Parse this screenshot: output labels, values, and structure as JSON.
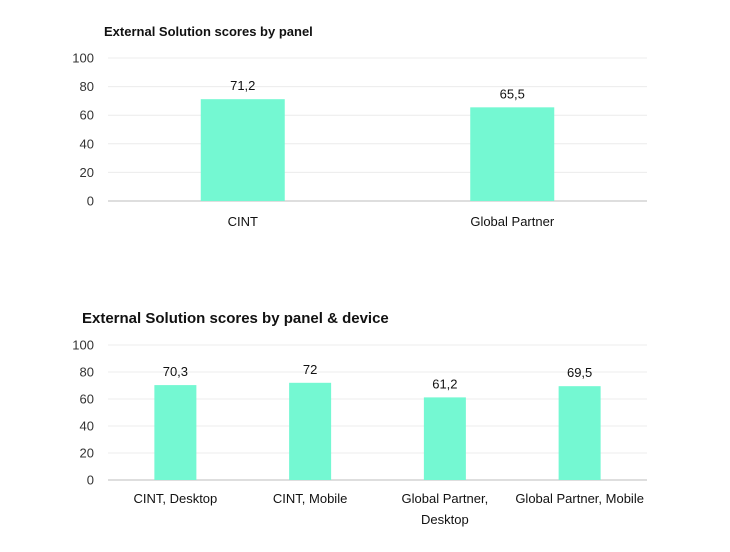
{
  "chart_data": [
    {
      "type": "bar",
      "title": "External Solution scores by panel",
      "categories": [
        "CINT",
        "Global Partner"
      ],
      "values": [
        71.2,
        65.5
      ],
      "value_labels": [
        "71,2",
        "65,5"
      ],
      "xlabel": "",
      "ylabel": "",
      "ylim": [
        0,
        100
      ],
      "yticks": [
        0,
        20,
        40,
        60,
        80,
        100
      ],
      "grid": true,
      "bar_color": "#74f8d2"
    },
    {
      "type": "bar",
      "title": "External Solution scores by panel & device",
      "categories": [
        "CINT, Desktop",
        "CINT, Mobile",
        "Global Partner, Desktop",
        "Global Partner, Mobile"
      ],
      "category_lines": [
        [
          "CINT, Desktop"
        ],
        [
          "CINT, Mobile"
        ],
        [
          "Global Partner,",
          "Desktop"
        ],
        [
          "Global Partner, Mobile"
        ]
      ],
      "values": [
        70.3,
        72,
        61.2,
        69.5
      ],
      "value_labels": [
        "70,3",
        "72",
        "61,2",
        "69,5"
      ],
      "xlabel": "",
      "ylabel": "",
      "ylim": [
        0,
        100
      ],
      "yticks": [
        0,
        20,
        40,
        60,
        80,
        100
      ],
      "grid": true,
      "bar_color": "#74f8d2"
    }
  ]
}
